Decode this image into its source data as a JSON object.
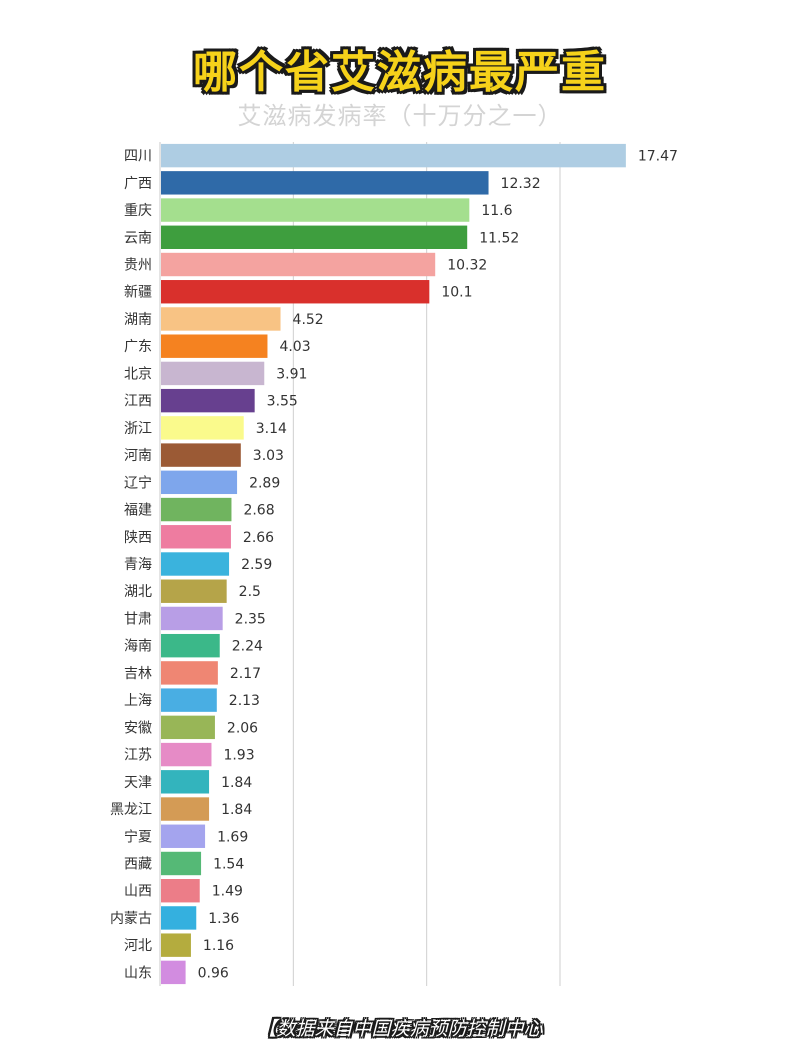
{
  "header": {
    "title": "哪个省艾滋病最严重",
    "subtitle": "艾滋病发病率（十万分之一）"
  },
  "footer": {
    "source": "【数据来自中国疾病预防控制中心"
  },
  "chart_data": {
    "type": "bar",
    "orientation": "horizontal",
    "title": "哪个省艾滋病最严重",
    "subtitle": "艾滋病发病率（十万分之一）",
    "xlabel": "",
    "ylabel": "",
    "xlim": [
      0,
      18
    ],
    "grid": "vertical",
    "legend": "none",
    "data_labels": "right-of-bar",
    "categories": [
      "四川",
      "广西",
      "重庆",
      "云南",
      "贵州",
      "新疆",
      "湖南",
      "广东",
      "北京",
      "江西",
      "浙江",
      "河南",
      "辽宁",
      "福建",
      "陕西",
      "青海",
      "湖北",
      "甘肃",
      "海南",
      "吉林",
      "上海",
      "安徽",
      "江苏",
      "天津",
      "黑龙江",
      "宁夏",
      "西藏",
      "山西",
      "内蒙古",
      "河北",
      "山东"
    ],
    "values": [
      17.47,
      12.32,
      11.6,
      11.52,
      10.32,
      10.1,
      4.52,
      4.03,
      3.91,
      3.55,
      3.14,
      3.03,
      2.89,
      2.68,
      2.66,
      2.59,
      2.5,
      2.35,
      2.24,
      2.17,
      2.13,
      2.06,
      1.93,
      1.84,
      1.84,
      1.69,
      1.54,
      1.49,
      1.36,
      1.16,
      0.96
    ],
    "value_labels": [
      "17.47",
      "12.32",
      "11.6",
      "11.52",
      "10.32",
      "10.1",
      "4.52",
      "4.03",
      "3.91",
      "3.55",
      "3.14",
      "3.03",
      "2.89",
      "2.68",
      "2.66",
      "2.59",
      "2.5",
      "2.35",
      "2.24",
      "2.17",
      "2.13",
      "2.06",
      "1.93",
      "1.84",
      "1.84",
      "1.69",
      "1.54",
      "1.49",
      "1.36",
      "1.16",
      "0.96"
    ],
    "colors": [
      "#aecde3",
      "#2f6aa8",
      "#a4df8e",
      "#3e9e3e",
      "#f4a3a0",
      "#d9302c",
      "#f8c384",
      "#f58220",
      "#c8b6d0",
      "#67408f",
      "#fafa8c",
      "#9b5a35",
      "#7ea6ec",
      "#70b45f",
      "#ee7ca0",
      "#3ab3dd",
      "#b5a449",
      "#b89ee6",
      "#3bb889",
      "#ef8673",
      "#49aee3",
      "#98b657",
      "#e68bc6",
      "#33b4bd",
      "#d49b55",
      "#a4a4ee",
      "#55b976",
      "#ec7d88",
      "#34b0df",
      "#b4ac3e",
      "#d28ce0"
    ]
  }
}
